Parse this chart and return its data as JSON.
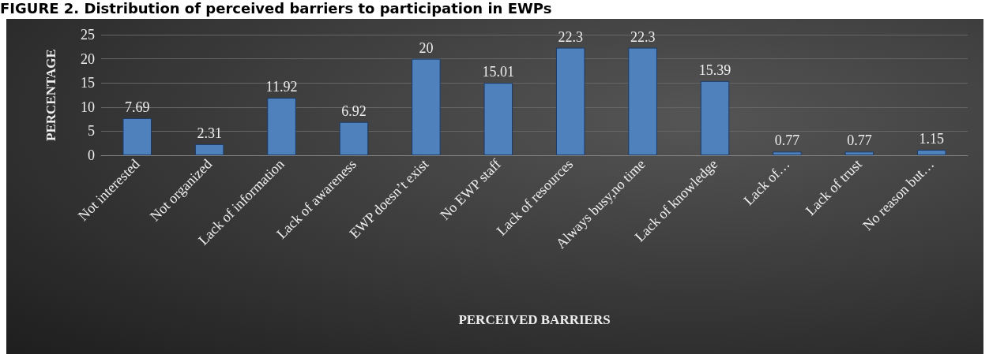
{
  "chart_data": {
    "type": "bar",
    "title": "FIGURE 2. Distribution of perceived barriers to participation in EWPs",
    "xlabel": "PERCEIVED BARRIERS",
    "ylabel": "PERCENTAGE",
    "categories": [
      "Not interested",
      "Not organized",
      "Lack of information",
      "Lack of awareness",
      "EWP doesn’t exist",
      "No EWP staff",
      "Lack of resources",
      "Always busy,no time",
      "Lack of knowledge",
      "Lack of…",
      "Lack of trust",
      "No reason but…"
    ],
    "values": [
      7.69,
      2.31,
      11.92,
      6.92,
      20,
      15.01,
      22.3,
      22.3,
      15.39,
      0.77,
      0.77,
      1.15
    ],
    "color": "#4f81bd",
    "ylim": [
      0,
      25
    ],
    "yticks": [
      0,
      5,
      10,
      15,
      20,
      25
    ],
    "grid": "y",
    "data_labels": true
  }
}
